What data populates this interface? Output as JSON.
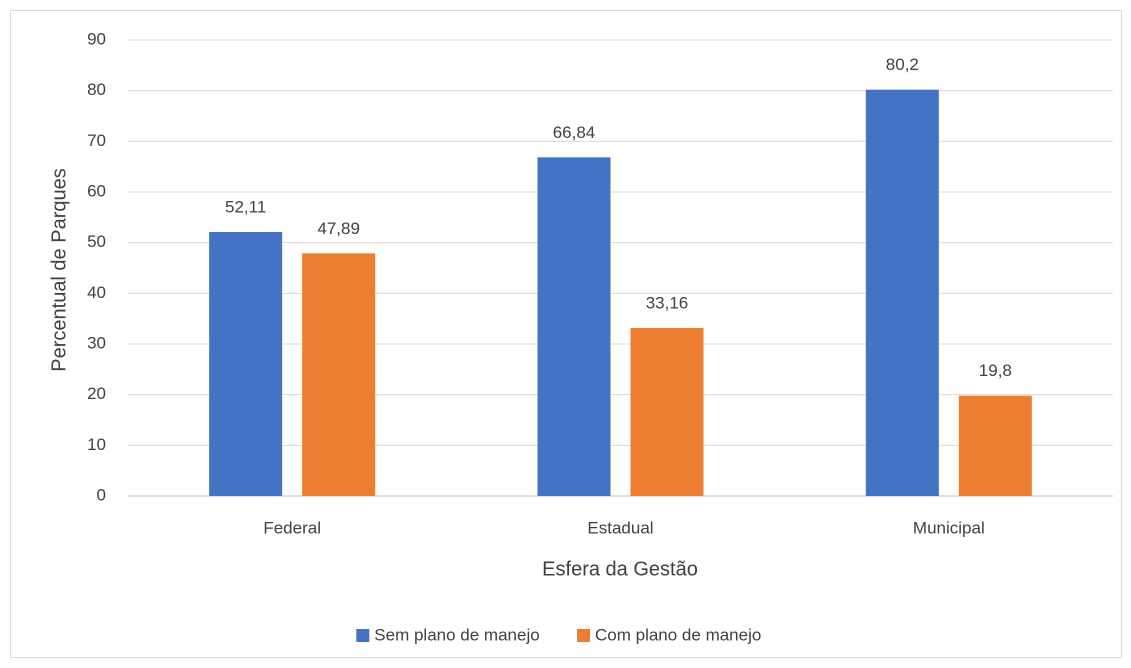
{
  "chart_data": {
    "type": "bar",
    "categories": [
      "Federal",
      "Estadual",
      "Municipal"
    ],
    "series": [
      {
        "name": "Sem plano de manejo",
        "color": "#4472c4",
        "values": [
          52.11,
          66.84,
          80.2
        ],
        "value_labels": [
          "52,11",
          "66,84",
          "80,2"
        ]
      },
      {
        "name": "Com plano de manejo",
        "color": "#ed7d31",
        "values": [
          47.89,
          33.16,
          19.8
        ],
        "value_labels": [
          "47,89",
          "33,16",
          "19,8"
        ]
      }
    ],
    "x_label": "Esfera da Gestão",
    "y_label": "Percentual de Parques",
    "ylim": [
      0,
      90
    ],
    "yticks": [
      0,
      10,
      20,
      30,
      40,
      50,
      60,
      70,
      80,
      90
    ],
    "grid": true,
    "legend": "bottom"
  }
}
